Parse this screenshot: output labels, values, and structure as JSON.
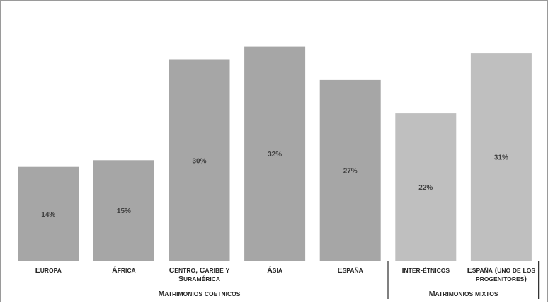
{
  "chart_data": {
    "type": "bar",
    "categories": [
      "Europa",
      "África",
      "Centro, Caribe y Suramérica",
      "Ásia",
      "España",
      "Inter-étnicos",
      "España (uno de los progenitores)"
    ],
    "category_lines": [
      [
        "Europa"
      ],
      [
        "África"
      ],
      [
        "Centro, Caribe y",
        "Suramérica"
      ],
      [
        "Ásia"
      ],
      [
        "España"
      ],
      [
        "Inter-étnicos"
      ],
      [
        "España (uno de los",
        "progenitores)"
      ]
    ],
    "values": [
      14,
      15,
      30,
      32,
      27,
      22,
      31
    ],
    "value_labels": [
      "14%",
      "15%",
      "30%",
      "32%",
      "27%",
      "22%",
      "31%"
    ],
    "ylim": [
      0,
      34.5
    ],
    "groups": [
      {
        "label": "Matrimonios coetnicos",
        "categories": [
          0,
          1,
          2,
          3,
          4
        ]
      },
      {
        "label": "Matrimonios mixtos",
        "categories": [
          5,
          6
        ]
      }
    ],
    "colors": {
      "group_1_bar": "#A6A6A6",
      "group_2_bar": "#BFBFBF",
      "axis": "#000000"
    },
    "grid": false,
    "legend": "none"
  }
}
